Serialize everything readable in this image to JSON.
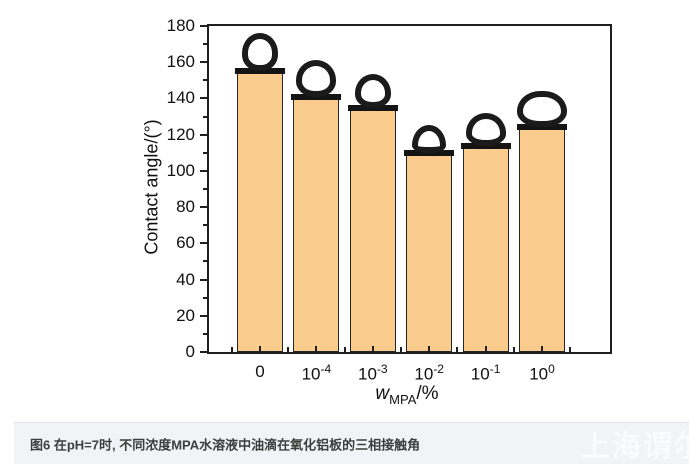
{
  "figure": {
    "caption": "图6 在pH=7时, 不同浓度MPA水溶液中油滴在氧化铝板的三相接触角",
    "watermark": "上海谓尔"
  },
  "chart_data": {
    "type": "bar",
    "title": "",
    "categories": [
      "0",
      "10^-4",
      "10^-3",
      "10^-2",
      "10^-1",
      "10^0"
    ],
    "values": [
      155,
      141,
      135,
      110,
      114,
      124
    ],
    "ylabel": "Contact angle/(°)",
    "xlabel": {
      "symbol": "w",
      "subscript": "MPA",
      "suffix": "/%"
    },
    "ylim": [
      0,
      180
    ],
    "ytick_step": 20,
    "ytick_minor_step": 10,
    "grid": false,
    "legend": null,
    "bar_color": "#F9CB8D",
    "bar_border_color": "#242424",
    "axis_color": "#1f1f1f",
    "annotation": "oil droplet photograph above each bar"
  }
}
